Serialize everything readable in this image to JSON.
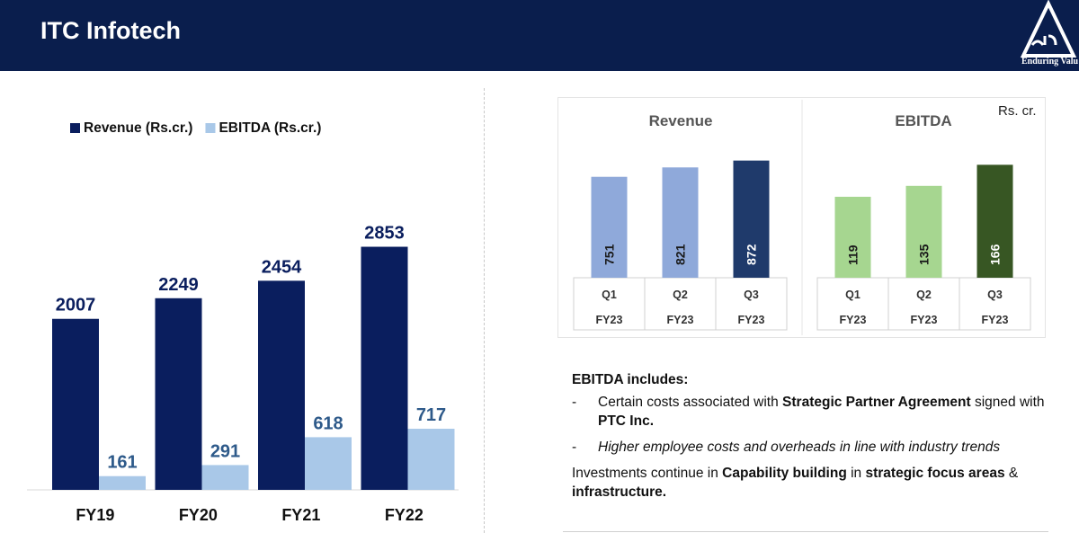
{
  "header": {
    "title": "ITC Infotech",
    "tagline": "Enduring Valu",
    "bg_color": "#0a1e4d"
  },
  "chart_data": [
    {
      "type": "bar",
      "categories": [
        "FY19",
        "FY20",
        "FY21",
        "FY22"
      ],
      "series": [
        {
          "name": "Revenue (Rs.cr.)",
          "values": [
            2007,
            2249,
            2454,
            2853
          ],
          "color": "#0a1e5e",
          "label_color": "#0a1e5e"
        },
        {
          "name": "EBITDA (Rs.cr.)",
          "values": [
            161,
            291,
            618,
            717
          ],
          "color": "#a9c8e8",
          "label_color": "#2e5a8a"
        }
      ],
      "legend": "top-left",
      "grid": false
    },
    {
      "type": "bar",
      "title": "Revenue",
      "categories": [
        "Q1 FY23",
        "Q2 FY23",
        "Q3 FY23"
      ],
      "category_lines": [
        [
          "Q1",
          "FY23"
        ],
        [
          "Q2",
          "FY23"
        ],
        [
          "Q3",
          "FY23"
        ]
      ],
      "values": [
        751,
        821,
        872
      ],
      "colors": [
        "#8fa9da",
        "#8fa9da",
        "#1f3a6b"
      ]
    },
    {
      "type": "bar",
      "title": "EBITDA",
      "categories": [
        "Q1 FY23",
        "Q2 FY23",
        "Q3 FY23"
      ],
      "category_lines": [
        [
          "Q1",
          "FY23"
        ],
        [
          "Q2",
          "FY23"
        ],
        [
          "Q3",
          "FY23"
        ]
      ],
      "values": [
        119,
        135,
        166
      ],
      "colors": [
        "#a6d690",
        "#a6d690",
        "#375623"
      ]
    }
  ],
  "unit_label": "Rs. cr.",
  "notes": {
    "heading": "EBITDA includes:",
    "bullet_dash": "-",
    "bullet1_pre": "Certain costs associated with ",
    "bullet1_bold1": "Strategic Partner Agreement",
    "bullet1_mid": " signed with ",
    "bullet1_bold2": "PTC Inc.",
    "bullet2": "Higher employee costs and overheads in line with industry trends",
    "invest_pre": "Investments continue in ",
    "invest_bold1": "Capability building",
    "invest_mid": " in ",
    "invest_bold2": "strategic focus areas",
    "invest_amp": " & ",
    "invest_bold3": "infrastructure."
  }
}
